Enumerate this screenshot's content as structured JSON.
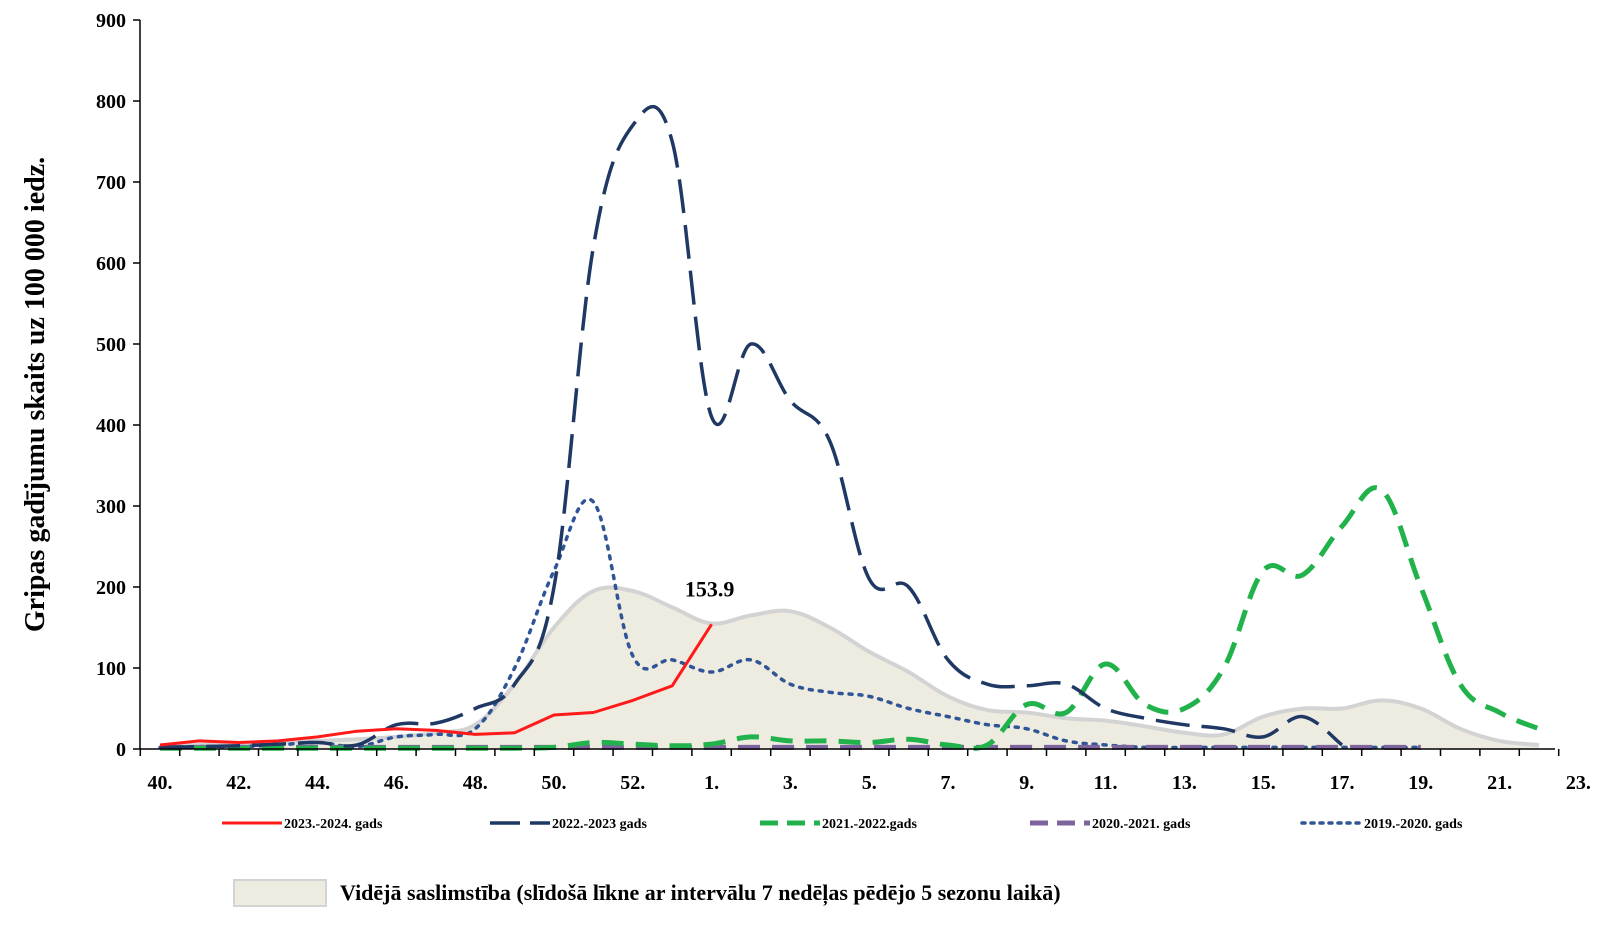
{
  "chart_data": {
    "type": "line",
    "ylabel": "Gripas gadījumu skaits uz 100 000 iedz.",
    "xlabel": "",
    "ylim": [
      0,
      900
    ],
    "yticks": [
      0,
      100,
      200,
      300,
      400,
      500,
      600,
      700,
      800,
      900
    ],
    "weeks": [
      40,
      41,
      42,
      43,
      44,
      45,
      46,
      47,
      48,
      49,
      50,
      51,
      52,
      1,
      2,
      3,
      4,
      5,
      6,
      7,
      8,
      9,
      10,
      11,
      12,
      13,
      14,
      15,
      16,
      17,
      18,
      19,
      20,
      21,
      22,
      23
    ],
    "xtick_labels": [
      "40.",
      "42.",
      "44.",
      "46.",
      "48.",
      "50.",
      "52.",
      "1.",
      "3.",
      "5.",
      "7.",
      "9.",
      "11.",
      "13.",
      "15.",
      "17.",
      "19.",
      "21.",
      "23."
    ],
    "grid": false,
    "legend_placement": "bottom",
    "annotation": {
      "text": "153.9",
      "series": "2023.-2024. gads"
    },
    "series": [
      {
        "name": "2023.-2024. gads",
        "color": "#ff1a1a",
        "style": "solid",
        "values": [
          5,
          10,
          8,
          10,
          15,
          22,
          25,
          23,
          18,
          20,
          42,
          45,
          60,
          78,
          153.9
        ]
      },
      {
        "name": "2022.-2023 gads",
        "color": "#1f3864",
        "style": "longdash",
        "values": [
          2,
          3,
          4,
          6,
          8,
          5,
          30,
          32,
          50,
          80,
          200,
          620,
          770,
          750,
          410,
          500,
          430,
          380,
          210,
          200,
          110,
          80,
          78,
          80,
          50,
          38,
          30,
          25,
          15,
          40,
          5
        ]
      },
      {
        "name": "2021.-2022.gads",
        "color": "#21b24b",
        "style": "dash",
        "values": [
          1,
          1,
          1,
          1,
          1,
          1,
          1,
          1,
          1,
          1,
          2,
          8,
          6,
          4,
          6,
          15,
          10,
          10,
          8,
          12,
          5,
          5,
          55,
          45,
          105,
          55,
          50,
          100,
          220,
          215,
          275,
          320,
          200,
          80,
          45,
          25
        ]
      },
      {
        "name": "2020.-2021. gads",
        "color": "#7e649e",
        "style": "dash",
        "values": [
          2,
          2,
          2,
          2,
          2,
          2,
          2,
          2,
          2,
          2,
          2,
          2,
          2,
          2,
          2,
          2,
          2,
          2,
          2,
          2,
          2,
          2,
          2,
          2,
          2,
          2,
          2,
          2,
          2,
          2,
          2,
          2,
          2
        ]
      },
      {
        "name": "2019.-2020. gads",
        "color": "#2f5597",
        "style": "dot",
        "values": [
          2,
          3,
          3,
          5,
          8,
          3,
          15,
          18,
          25,
          100,
          220,
          305,
          115,
          110,
          95,
          110,
          80,
          70,
          65,
          50,
          40,
          30,
          25,
          10,
          5,
          2,
          2,
          2,
          2,
          2,
          2,
          2,
          2
        ]
      }
    ],
    "area": {
      "name": "Vidējā saslimstība (slīdošā līkne ar intervālu 7 nedēļas pēdējo 5 sezonu laikā)",
      "fill": "#eeece1",
      "stroke": "#d3d3d3",
      "values": [
        3,
        5,
        7,
        9,
        10,
        12,
        15,
        20,
        30,
        80,
        150,
        195,
        195,
        175,
        155,
        165,
        170,
        150,
        120,
        95,
        65,
        48,
        45,
        38,
        35,
        28,
        20,
        18,
        40,
        50,
        50,
        60,
        50,
        25,
        10,
        5
      ]
    }
  }
}
